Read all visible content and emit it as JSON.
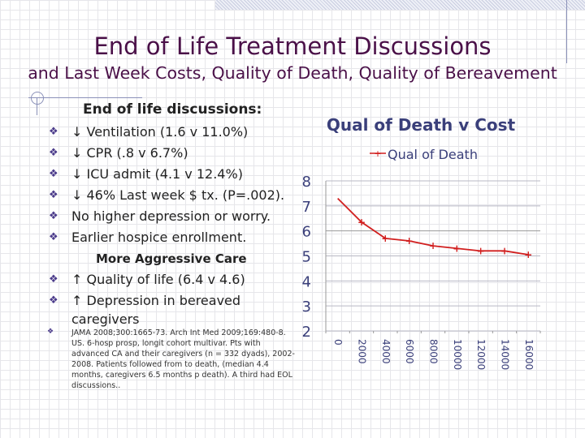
{
  "slide": {
    "title": "End of Life Treatment Discussions",
    "subtitle": "and Last Week Costs, Quality of Death, Quality of Bereavement",
    "heading": "End of life discussions:",
    "bullets": [
      "↓ Ventilation (1.6 v 11.0%)",
      "↓ CPR (.8 v 6.7%)",
      "↓ ICU admit (4.1 v 12.4%)",
      "↓  46% Last week $ tx. (P=.002).",
      "No higher depression or worry.",
      "Earlier hospice enrollment."
    ],
    "subheading": "More Aggressive Care",
    "bullets2": [
      "↑ Quality of life (6.4 v 4.6)",
      "↑ Depression in bereaved",
      "caregivers"
    ],
    "reference": "JAMA 2008;300:1665-73. Arch Int Med 2009;169:480-8. US. 6-hosp prosp, longit cohort multivar. Pts with advanced CA and their caregivers (n = 332 dyads), 2002-2008. Patients followed from to death, (median 4.4 months, caregivers 6.5 months p death).  A third had EOL discussions.."
  },
  "colors": {
    "title": "#4a1048",
    "chart_title": "#3a3f7a",
    "series": "#d11f1f"
  },
  "chart_data": {
    "type": "line",
    "title": "Qual of Death v Cost",
    "legend_placement": "top",
    "x": [
      0,
      2000,
      4000,
      6000,
      8000,
      10000,
      12000,
      14000,
      16000
    ],
    "x_tick_labels": [
      "0",
      "2000",
      "4000",
      "6000",
      "8000",
      "10000",
      "12000",
      "14000",
      "16000"
    ],
    "y_tick_labels": [
      "2",
      "3",
      "4",
      "5",
      "6",
      "7",
      "8"
    ],
    "ylim": [
      2,
      8
    ],
    "grid": true,
    "series": [
      {
        "name": "Qual of Death",
        "values": [
          7.3,
          6.35,
          5.7,
          5.6,
          5.4,
          5.3,
          5.2,
          5.2,
          5.05
        ],
        "markers_from_index": 1
      }
    ]
  }
}
